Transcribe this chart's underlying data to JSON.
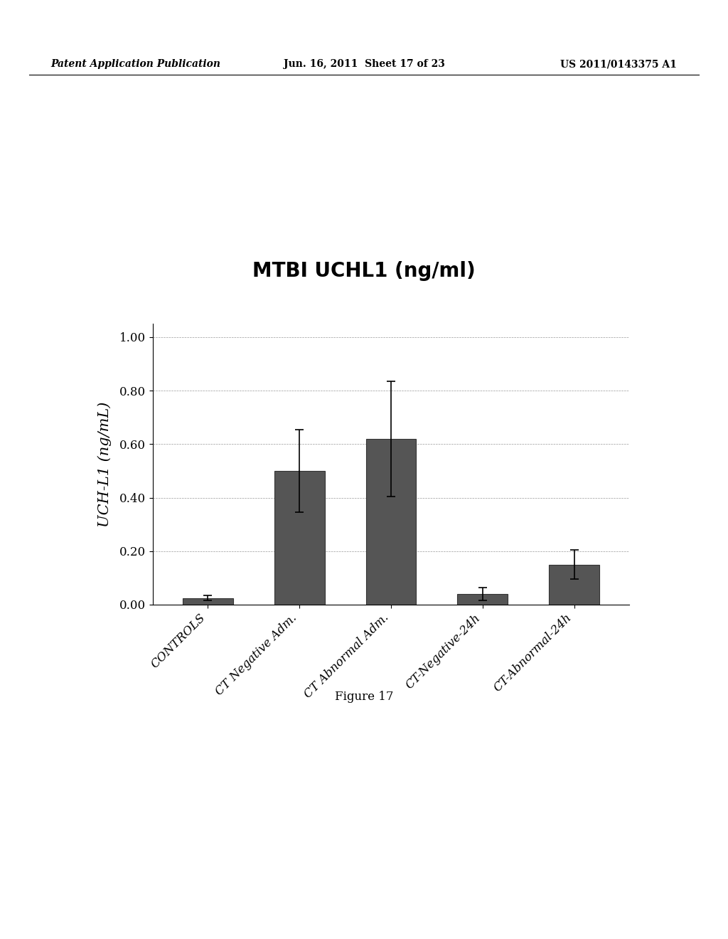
{
  "title": "MTBI UCHL1 (ng/ml)",
  "ylabel": "UCH-L1 (ng/mL)",
  "categories": [
    "CONTROLS",
    "CT Negative Adm.",
    "CT Abnormal Adm.",
    "CT-Negative-24h",
    "CT-Abnormal-24h"
  ],
  "values": [
    0.025,
    0.5,
    0.62,
    0.04,
    0.15
  ],
  "errors": [
    0.01,
    0.155,
    0.215,
    0.025,
    0.055
  ],
  "ylim": [
    0.0,
    1.05
  ],
  "yticks": [
    0.0,
    0.2,
    0.4,
    0.6,
    0.8,
    1.0
  ],
  "bar_color": "#555555",
  "bar_edgecolor": "#333333",
  "background_color": "#ffffff",
  "title_fontsize": 20,
  "ylabel_fontsize": 15,
  "tick_fontsize": 12,
  "caption": "Figure 17",
  "header_left": "Patent Application Publication",
  "header_center": "Jun. 16, 2011  Sheet 17 of 23",
  "header_right": "US 2011/0143375 A1"
}
